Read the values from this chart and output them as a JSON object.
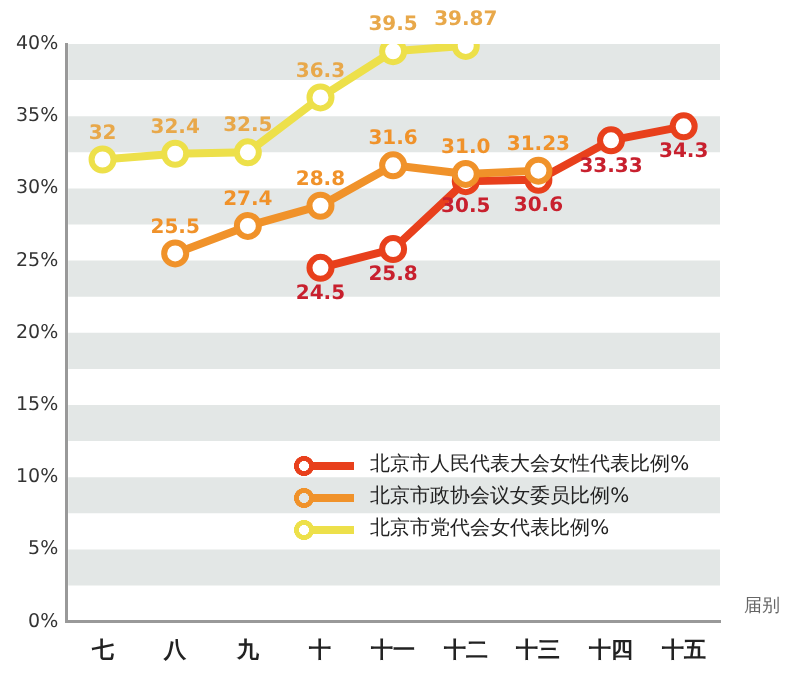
{
  "chart_data": {
    "type": "line",
    "xlabel": "届别",
    "categories": [
      "七",
      "八",
      "九",
      "十",
      "十一",
      "十二",
      "十三",
      "十四",
      "十五"
    ],
    "series": [
      {
        "name": "北京市人民代表大会女性代表比例%",
        "color": "#e8401c",
        "values": [
          null,
          null,
          null,
          24.5,
          25.8,
          30.5,
          30.6,
          33.33,
          34.3
        ],
        "value_labels": [
          null,
          null,
          null,
          "24.5",
          "25.8",
          "30.5",
          "30.6",
          "33.33",
          "34.3"
        ]
      },
      {
        "name": "北京市政协会议女委员比例%",
        "color": "#f0922a",
        "values": [
          null,
          25.5,
          27.4,
          28.8,
          31.6,
          31.0,
          31.23,
          null,
          null
        ],
        "value_labels": [
          null,
          "25.5",
          "27.4",
          "28.8",
          "31.6",
          "31.0",
          "31.23",
          null,
          null
        ]
      },
      {
        "name": "北京市党代会女代表比例%",
        "color": "#ede04a",
        "values": [
          32,
          32.4,
          32.5,
          36.3,
          39.5,
          39.87,
          null,
          null,
          null
        ],
        "value_labels": [
          "32",
          "32.4",
          "32.5",
          "36.3",
          "39.5",
          "39.87",
          null,
          null,
          null
        ]
      }
    ],
    "ylim": [
      0,
      40
    ],
    "yticks": [
      {
        "value": 0,
        "label": "0%"
      },
      {
        "value": 5,
        "label": "5%"
      },
      {
        "value": 10,
        "label": "10%"
      },
      {
        "value": 15,
        "label": "15%"
      },
      {
        "value": 20,
        "label": "20%"
      },
      {
        "value": 25,
        "label": "25%"
      },
      {
        "value": 30,
        "label": "30%"
      },
      {
        "value": 35,
        "label": "35%"
      },
      {
        "value": 40,
        "label": "40%"
      }
    ],
    "bands": [
      {
        "axis": "y",
        "from": 2.5,
        "to": 5,
        "color": "#e3e7e6"
      },
      {
        "axis": "y",
        "from": 7.5,
        "to": 10,
        "color": "#e3e7e6"
      },
      {
        "axis": "y",
        "from": 12.5,
        "to": 15,
        "color": "#e3e7e6"
      },
      {
        "axis": "y",
        "from": 17.5,
        "to": 20,
        "color": "#e3e7e6"
      },
      {
        "axis": "y",
        "from": 22.5,
        "to": 25,
        "color": "#e3e7e6"
      },
      {
        "axis": "y",
        "from": 27.5,
        "to": 30,
        "color": "#e3e7e6"
      },
      {
        "axis": "y",
        "from": 32.5,
        "to": 35,
        "color": "#e3e7e6"
      },
      {
        "axis": "y",
        "from": 37.5,
        "to": 40,
        "color": "#e3e7e6"
      }
    ],
    "grid": false,
    "legend": "bottom right",
    "marker": "circle",
    "line_style": "solid"
  }
}
